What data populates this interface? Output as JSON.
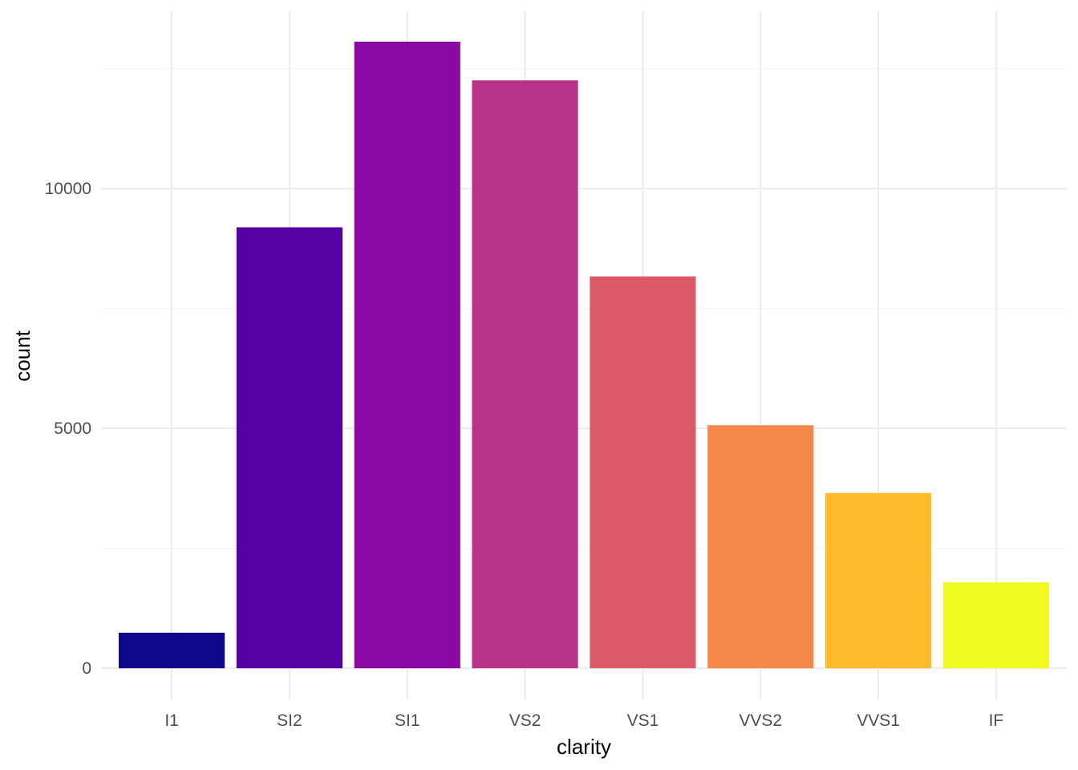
{
  "chart_data": {
    "type": "bar",
    "title": "",
    "xlabel": "clarity",
    "ylabel": "count",
    "categories": [
      "I1",
      "SI2",
      "SI1",
      "VS2",
      "VS1",
      "VVS2",
      "VVS1",
      "IF"
    ],
    "values": [
      741,
      9194,
      13065,
      12258,
      8171,
      5066,
      3655,
      1790
    ],
    "colors": [
      "#0d0887",
      "#5402a3",
      "#8b0aa5",
      "#b93289",
      "#db5c68",
      "#f48849",
      "#febc2a",
      "#f0f921"
    ],
    "yticks": [
      0,
      5000,
      10000
    ],
    "ylim": [
      -650,
      13700
    ],
    "grid": true,
    "legend": "none"
  }
}
